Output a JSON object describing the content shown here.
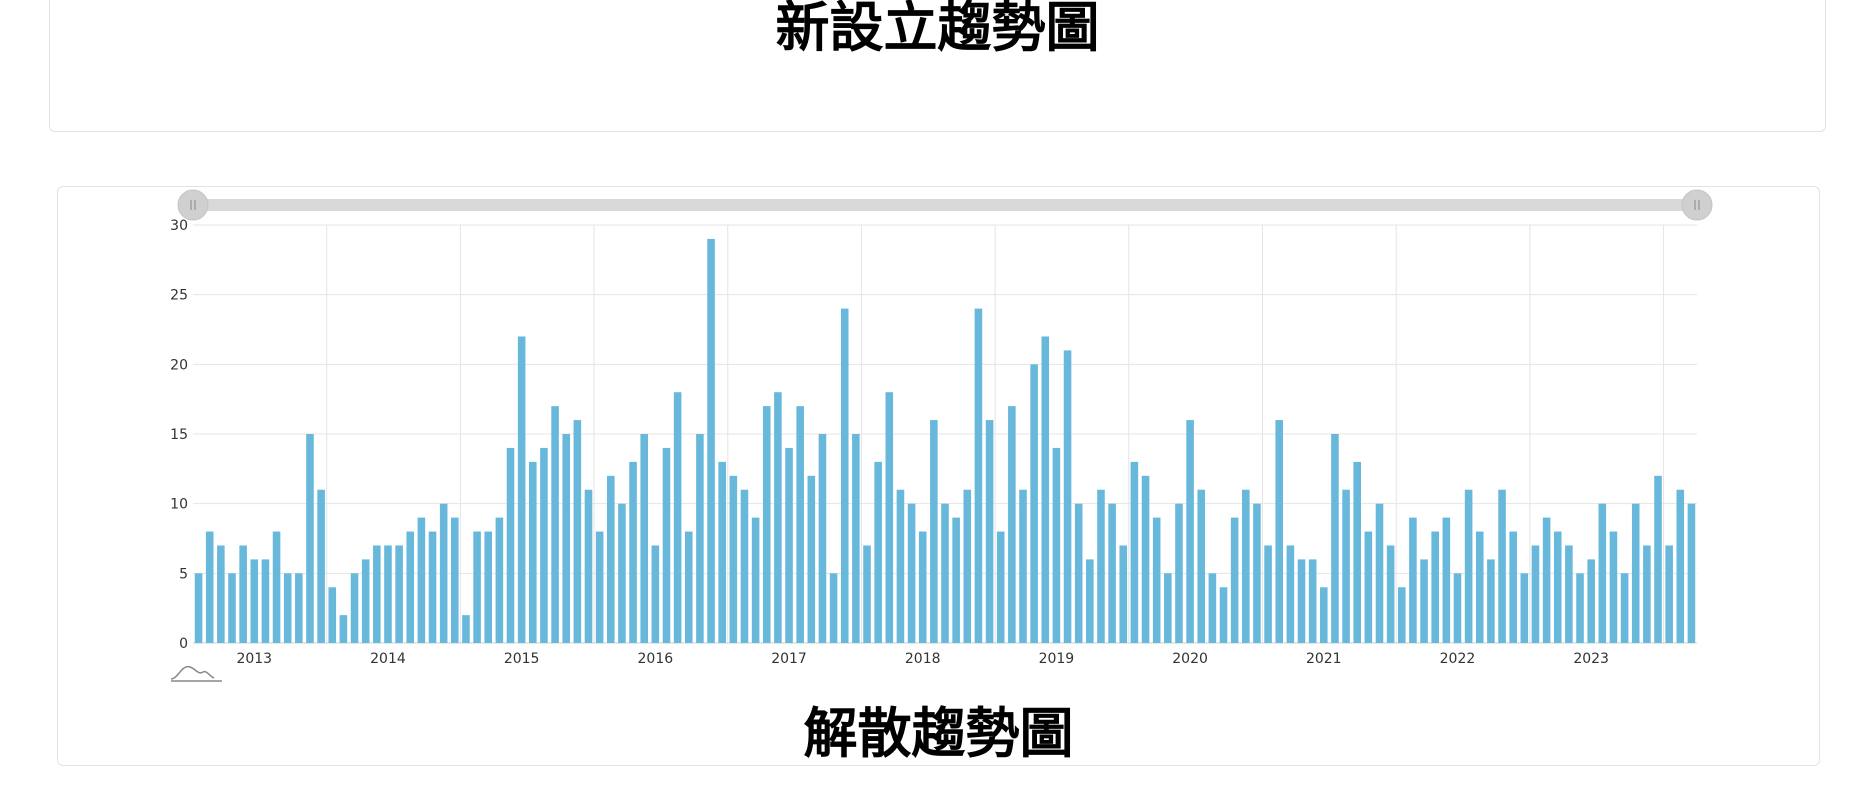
{
  "top_card": {
    "title": "新設立趨勢圖"
  },
  "bottom_card": {
    "title": "解散趨勢圖"
  },
  "colors": {
    "bar": "#68b8dc",
    "grid": "#e4e4e4",
    "slider_track": "#d9d9d9",
    "slider_handle": "#d0d0d0"
  },
  "icons": {
    "zoom_preview": "mini-trend-icon"
  },
  "chart_data": {
    "type": "bar",
    "title": "",
    "xlabel": "",
    "ylabel": "",
    "ylim": [
      0,
      30
    ],
    "yticks": [
      0,
      5,
      10,
      15,
      20,
      25,
      30
    ],
    "xticks": [
      "2013",
      "2014",
      "2015",
      "2016",
      "2017",
      "2018",
      "2019",
      "2020",
      "2021",
      "2022",
      "2023"
    ],
    "grid": true,
    "legend": "none",
    "series": [
      {
        "values": [
          5,
          8,
          7,
          5,
          7,
          6,
          6,
          8,
          5,
          5,
          15,
          11,
          4,
          2,
          5,
          6,
          7,
          7,
          7,
          8,
          9,
          8,
          10,
          9,
          2,
          8,
          8,
          9,
          14,
          22,
          13,
          14,
          17,
          15,
          16,
          11,
          8,
          12,
          10,
          13,
          15,
          7,
          14,
          18,
          8,
          15,
          29,
          13,
          12,
          11,
          9,
          17,
          18,
          14,
          17,
          12,
          15,
          5,
          24,
          15,
          7,
          13,
          18,
          11,
          10,
          8,
          16,
          10,
          9,
          11,
          24,
          16,
          8,
          17,
          11,
          20,
          22,
          14,
          21,
          10,
          6,
          11,
          10,
          7,
          13,
          12,
          9,
          5,
          10,
          16,
          11,
          5,
          4,
          9,
          11,
          10,
          7,
          16,
          7,
          6,
          6,
          4,
          15,
          11,
          13,
          8,
          10,
          7,
          4,
          9,
          6,
          8,
          9,
          5,
          11,
          8,
          6,
          11,
          8,
          5,
          7,
          9,
          8,
          7,
          5,
          6,
          10,
          8,
          5,
          10,
          7,
          12,
          7,
          11,
          10
        ]
      }
    ]
  }
}
